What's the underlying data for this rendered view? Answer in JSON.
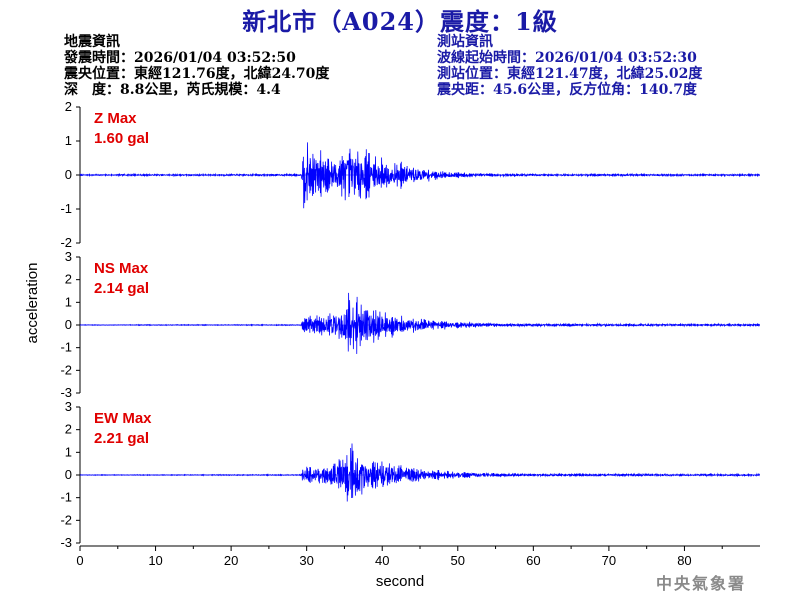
{
  "title": "新北市（A024）震度：1級",
  "quake_info": {
    "heading": "地震資訊",
    "origin_time": "發震時間：2026/01/04 03:52:50",
    "epicenter": "震央位置：東經121.76度，北緯24.70度",
    "depth_magnitude": "深　度：8.8公里，芮氏規模：4.4"
  },
  "station_info": {
    "heading": "測站資訊",
    "wave_start": "波線起始時間：2026/01/04 03:52:30",
    "location": "測站位置：東經121.47度，北緯25.02度",
    "distance": "震央距：45.6公里，反方位角：140.7度"
  },
  "footer": "中央氣象署",
  "colors": {
    "title": "#1a1aa6",
    "trace": "#0000ff",
    "label": "#e00000"
  },
  "chart_data": {
    "type": "line",
    "xlabel": "second",
    "ylabel": "acceleration",
    "xlim": [
      0,
      90
    ],
    "x_ticks": [
      0,
      10,
      20,
      30,
      40,
      50,
      60,
      70,
      80
    ],
    "panels": [
      {
        "component": "Z",
        "max_label": "Z Max",
        "max_value": "1.60 gal",
        "ylim": [
          -2,
          2
        ],
        "y_ticks": [
          -2,
          -1,
          0,
          1,
          2
        ],
        "envelope": [
          [
            0,
            0.03
          ],
          [
            29.3,
            0.04
          ],
          [
            29.6,
            1.5
          ],
          [
            30.5,
            1.1
          ],
          [
            32,
            0.9
          ],
          [
            34,
            0.7
          ],
          [
            35.5,
            1.2
          ],
          [
            37,
            1.0
          ],
          [
            38.5,
            0.8
          ],
          [
            40,
            0.7
          ],
          [
            42,
            0.5
          ],
          [
            44,
            0.4
          ],
          [
            46,
            0.25
          ],
          [
            48,
            0.15
          ],
          [
            52,
            0.08
          ],
          [
            60,
            0.05
          ],
          [
            90,
            0.03
          ]
        ]
      },
      {
        "component": "NS",
        "max_label": "NS Max",
        "max_value": "2.14 gal",
        "ylim": [
          -3,
          3
        ],
        "y_ticks": [
          -3,
          -2,
          -1,
          0,
          1,
          2,
          3
        ],
        "envelope": [
          [
            0,
            0.02
          ],
          [
            29.2,
            0.03
          ],
          [
            29.5,
            0.5
          ],
          [
            31,
            0.5
          ],
          [
            33,
            0.7
          ],
          [
            35,
            1.2
          ],
          [
            36,
            2.0
          ],
          [
            37.5,
            1.3
          ],
          [
            39,
            1.0
          ],
          [
            41,
            0.8
          ],
          [
            43,
            0.5
          ],
          [
            46,
            0.3
          ],
          [
            50,
            0.2
          ],
          [
            55,
            0.1
          ],
          [
            60,
            0.08
          ],
          [
            90,
            0.06
          ]
        ]
      },
      {
        "component": "EW",
        "max_label": "EW Max",
        "max_value": "2.21 gal",
        "ylim": [
          -3,
          3
        ],
        "y_ticks": [
          -3,
          -2,
          -1,
          0,
          1,
          2,
          3
        ],
        "envelope": [
          [
            0,
            0.02
          ],
          [
            29.2,
            0.03
          ],
          [
            29.5,
            0.6
          ],
          [
            31,
            0.6
          ],
          [
            33,
            0.6
          ],
          [
            35,
            1.0
          ],
          [
            36,
            2.1
          ],
          [
            37.5,
            1.2
          ],
          [
            39,
            1.0
          ],
          [
            41,
            0.8
          ],
          [
            43,
            0.5
          ],
          [
            46,
            0.3
          ],
          [
            50,
            0.2
          ],
          [
            55,
            0.12
          ],
          [
            60,
            0.08
          ],
          [
            90,
            0.06
          ]
        ]
      }
    ]
  }
}
